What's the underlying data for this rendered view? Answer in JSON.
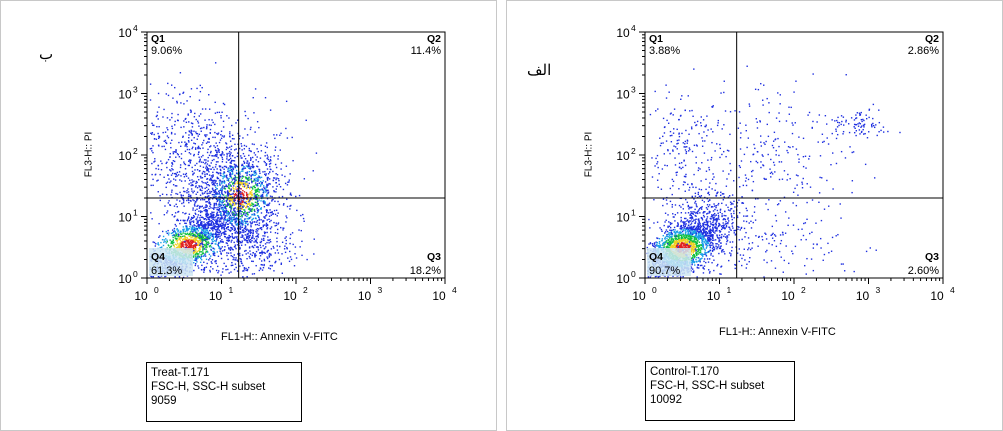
{
  "chart_data": [
    {
      "type": "scatter",
      "sample": "Treat-T.171",
      "panel_label": "ب",
      "xlabel": "FL1-H:: Annexin V-FITC",
      "ylabel": "FL3-H:: PI",
      "xscale": "log",
      "yscale": "log",
      "xlim": [
        1,
        10000
      ],
      "ylim": [
        1,
        10000
      ],
      "x_ticks": [
        "10",
        "10",
        "10",
        "10",
        "10"
      ],
      "x_tick_exps": [
        "0",
        "1",
        "2",
        "3",
        "4"
      ],
      "y_ticks": [
        "10",
        "10",
        "10",
        "10",
        "10"
      ],
      "y_tick_exps": [
        "0",
        "1",
        "2",
        "3",
        "4"
      ],
      "gate": {
        "x": 17,
        "y": 20
      },
      "quadrants": [
        {
          "name": "Q1",
          "value": "9.06%"
        },
        {
          "name": "Q2",
          "value": "11.4%"
        },
        {
          "name": "Q3",
          "value": "18.2%"
        },
        {
          "name": "Q4",
          "value": "61.3%"
        }
      ],
      "info_lines": [
        "Treat-T.171",
        "FSC-H, SSC-H subset",
        "9059"
      ],
      "event_count": 9059
    },
    {
      "type": "scatter",
      "sample": "Control-T.170",
      "panel_label": "الف",
      "xlabel": "FL1-H:: Annexin V-FITC",
      "ylabel": "FL3-H:: PI",
      "xscale": "log",
      "yscale": "log",
      "xlim": [
        1,
        10000
      ],
      "ylim": [
        1,
        10000
      ],
      "x_ticks": [
        "10",
        "10",
        "10",
        "10",
        "10"
      ],
      "x_tick_exps": [
        "0",
        "1",
        "2",
        "3",
        "4"
      ],
      "y_ticks": [
        "10",
        "10",
        "10",
        "10",
        "10"
      ],
      "y_tick_exps": [
        "0",
        "1",
        "2",
        "3",
        "4"
      ],
      "gate": {
        "x": 17,
        "y": 20
      },
      "quadrants": [
        {
          "name": "Q1",
          "value": "3.88%"
        },
        {
          "name": "Q2",
          "value": "2.86%"
        },
        {
          "name": "Q3",
          "value": "2.60%"
        },
        {
          "name": "Q4",
          "value": "90.7%"
        }
      ],
      "info_lines": [
        "Control-T.170",
        "FSC-H, SSC-H subset",
        "10092"
      ],
      "event_count": 10092
    }
  ],
  "colors": {
    "sparse": "#1e2fe0",
    "low": "#1aa0e8",
    "mid": "#10c040",
    "high": "#f0d020",
    "peak": "#e02020",
    "frame": "#000000",
    "panel_border": "#c8c8c8"
  }
}
